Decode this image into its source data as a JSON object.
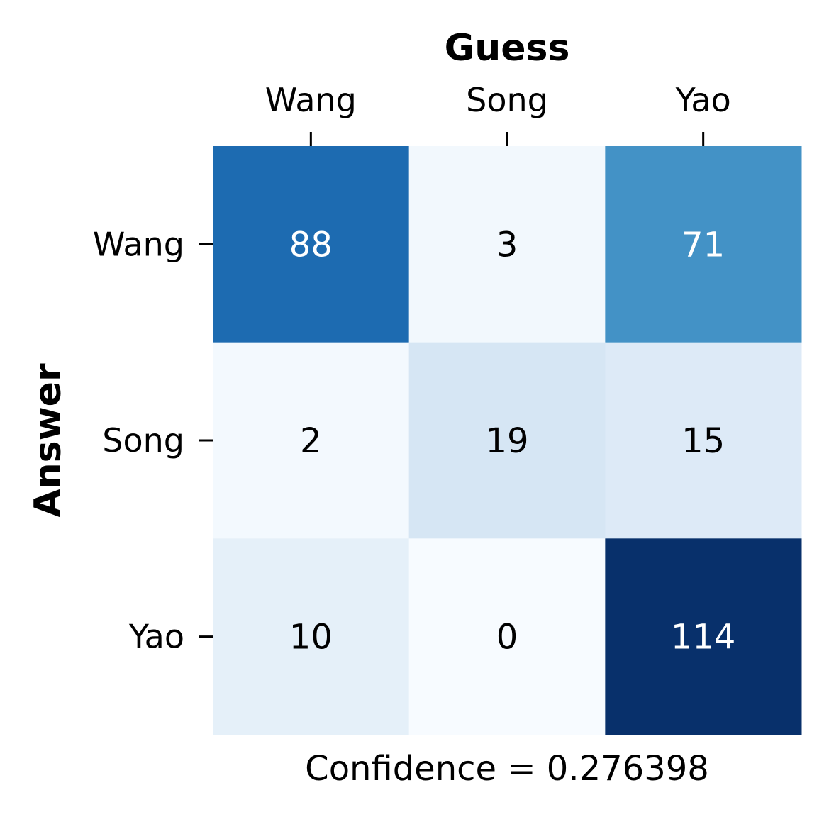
{
  "chart_data": {
    "type": "heatmap",
    "x_title": "Guess",
    "y_title": "Answer",
    "x_categories": [
      "Wang",
      "Song",
      "Yao"
    ],
    "y_categories": [
      "Wang",
      "Song",
      "Yao"
    ],
    "values": [
      [
        88,
        3,
        71
      ],
      [
        2,
        19,
        15
      ],
      [
        10,
        0,
        114
      ]
    ],
    "colormap": "Blues",
    "x_axis_position": "top",
    "grid": false,
    "colorbar": false,
    "caption": "Confidence = 0.276398"
  }
}
